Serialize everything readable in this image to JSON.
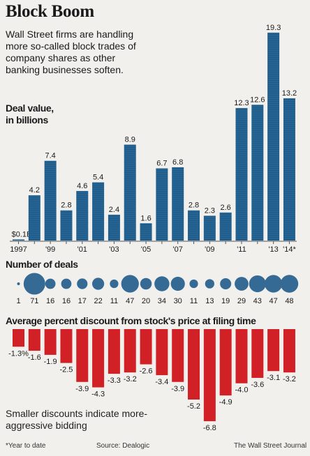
{
  "header": {
    "title": "Block Boom",
    "subtitle": "Wall Street firms are handling more so-called block trades of company shares as other banking businesses soften."
  },
  "colors": {
    "deal_bar": "#1c5c8c",
    "deal_bar_stroke": "#ffffff",
    "bubble": "#356a95",
    "discount_bar": "#d12026",
    "background": "#f2f0ec"
  },
  "chart_data": [
    {
      "type": "bar",
      "title": "Deal value, in billions",
      "categories": [
        "1997",
        "1998",
        "1999",
        "2000",
        "2001",
        "2002",
        "2003",
        "2004",
        "2005",
        "2006",
        "2007",
        "2008",
        "2009",
        "2010",
        "2011",
        "2012",
        "2013",
        "2014"
      ],
      "tick_labels": [
        "1997",
        "'99",
        "'01",
        "'03",
        "'05",
        "'07",
        "'09",
        "'11",
        "'13",
        "'14*"
      ],
      "tick_positions": [
        "1997",
        "1999",
        "2001",
        "2003",
        "2005",
        "2007",
        "2009",
        "2011",
        "2013",
        "2014"
      ],
      "values": [
        0.1,
        4.2,
        7.4,
        2.8,
        4.6,
        5.4,
        2.4,
        8.9,
        1.6,
        6.7,
        6.8,
        2.8,
        2.3,
        2.6,
        12.3,
        12.6,
        19.3,
        13.2
      ],
      "value_labels": [
        "$0.1B",
        "4.2",
        "7.4",
        "2.8",
        "4.6",
        "5.4",
        "2.4",
        "8.9",
        "1.6",
        "6.7",
        "6.8",
        "2.8",
        "2.3",
        "2.6",
        "12.3",
        "12.6",
        "19.3",
        "13.2"
      ],
      "ylim": [
        0,
        20
      ]
    },
    {
      "type": "bubble",
      "title": "Number of deals",
      "categories": [
        "1997",
        "1998",
        "1999",
        "2000",
        "2001",
        "2002",
        "2003",
        "2004",
        "2005",
        "2006",
        "2007",
        "2008",
        "2009",
        "2010",
        "2011",
        "2012",
        "2013",
        "2014"
      ],
      "values": [
        1,
        71,
        16,
        16,
        17,
        22,
        11,
        47,
        20,
        34,
        30,
        11,
        13,
        19,
        29,
        43,
        47,
        48
      ]
    },
    {
      "type": "bar",
      "title": "Average percent discount from stock's price at filing time",
      "categories": [
        "1997",
        "1998",
        "1999",
        "2000",
        "2001",
        "2002",
        "2003",
        "2004",
        "2005",
        "2006",
        "2007",
        "2008",
        "2009",
        "2010",
        "2011",
        "2012",
        "2013",
        "2014"
      ],
      "values": [
        -1.3,
        -1.6,
        -1.9,
        -2.5,
        -3.9,
        -4.3,
        -3.3,
        -3.2,
        -2.6,
        -3.4,
        -3.9,
        -5.2,
        -6.8,
        -4.9,
        -4.0,
        -3.6,
        -3.1,
        -3.2
      ],
      "value_labels": [
        "-1.3%",
        "-1.6",
        "-1.9",
        "-2.5",
        "-3.9",
        "-4.3",
        "-3.3",
        "-3.2",
        "-2.6",
        "-3.4",
        "-3.9",
        "-5.2",
        "-6.8",
        "-4.9",
        "-4.0",
        "-3.6",
        "-3.1",
        "-3.2"
      ],
      "ylim": [
        -7,
        0
      ]
    }
  ],
  "labels": {
    "deal_value": "Deal value,\nin billions",
    "deal_value_line1": "Deal value,",
    "deal_value_line2": "in billions",
    "number_of_deals": "Number of deals",
    "discount": "Average percent discount from stock's price at filing time",
    "note": "Smaller discounts indicate more-aggressive bidding"
  },
  "footer": {
    "footnote": "*Year to date",
    "source": "Source: Dealogic",
    "credit": "The Wall Street Journal"
  }
}
